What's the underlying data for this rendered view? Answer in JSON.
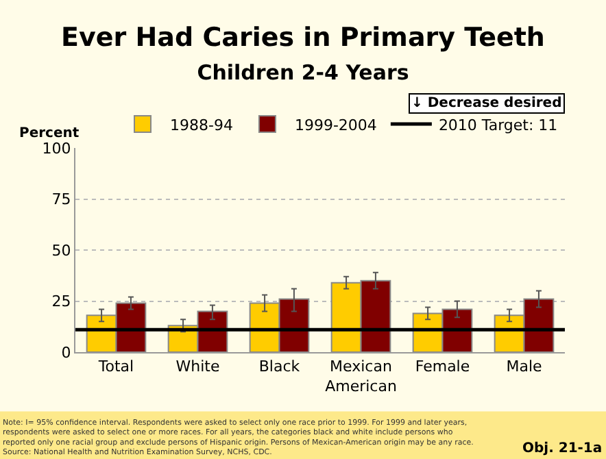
{
  "chart_data": {
    "type": "bar",
    "title": "Ever Had Caries in Primary Teeth",
    "subtitle": "Children 2-4 Years",
    "ylabel": "Percent",
    "categories": [
      "Total",
      "White",
      "Black",
      "Mexican\nAmerican",
      "Female",
      "Male"
    ],
    "series": [
      {
        "name": "1988-94",
        "color": "#ffcc00",
        "values": [
          18,
          13,
          24,
          34,
          19,
          18
        ],
        "errors": [
          [
            15,
            21
          ],
          [
            10,
            16
          ],
          [
            20,
            28
          ],
          [
            31,
            37
          ],
          [
            16,
            22
          ],
          [
            15,
            21
          ]
        ]
      },
      {
        "name": "1999-2004",
        "color": "#800000",
        "values": [
          24,
          20,
          26,
          35,
          21,
          26
        ],
        "errors": [
          [
            21,
            27
          ],
          [
            16,
            23
          ],
          [
            20,
            31
          ],
          [
            31,
            39
          ],
          [
            17,
            25
          ],
          [
            22,
            30
          ]
        ]
      }
    ],
    "ref_lines": [
      {
        "axis": "y",
        "value": 11,
        "label": "2010 Target: 11",
        "color": "#000000"
      }
    ],
    "ylim": [
      0,
      100
    ],
    "yticks": [
      0,
      25,
      50,
      75,
      100
    ],
    "grid": "y",
    "legend": "top right",
    "annotations": [
      "↓ Decrease desired",
      "Note: I= 95% confidence interval. Respondents were asked to select only one race prior to 1999. For 1999 and later years,\nrespondents were asked to select one or more races. For all years, the categories black and white include persons who\nreported only one racial group and exclude persons of Hispanic origin. Persons of Mexican-American origin may be any race.\nSource: National Health and Nutrition Examination Survey, NCHS, CDC.",
      "Obj. 21-1a"
    ]
  }
}
